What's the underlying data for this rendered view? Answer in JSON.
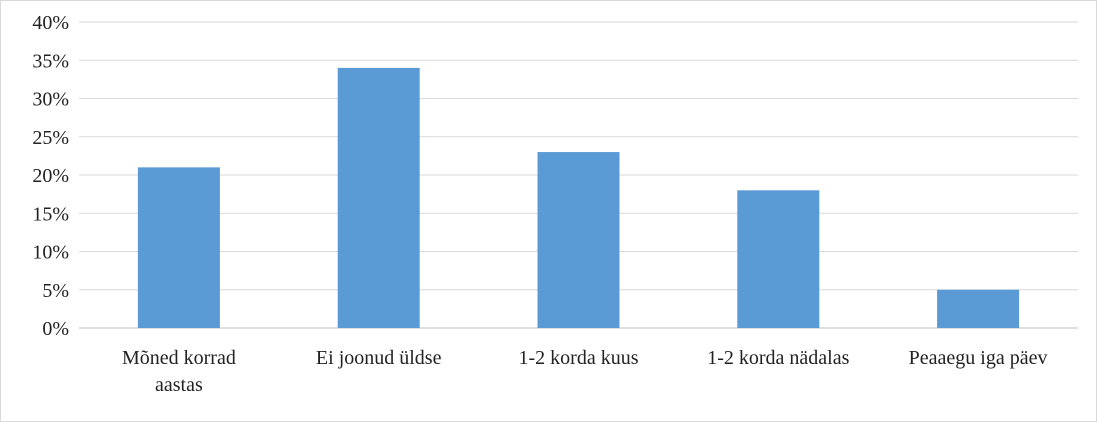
{
  "chart_data": {
    "type": "bar",
    "title": "",
    "xlabel": "",
    "ylabel": "",
    "categories": [
      [
        "Mõned korrad",
        "aastas"
      ],
      [
        "Ei joonud üldse"
      ],
      [
        "1-2 korda kuus"
      ],
      [
        "1-2 korda nädalas"
      ],
      [
        "Peaaegu iga päev"
      ]
    ],
    "values": [
      21,
      34,
      23,
      18,
      5
    ],
    "ylim": [
      0,
      40
    ],
    "yticks": [
      0,
      5,
      10,
      15,
      20,
      25,
      30,
      35,
      40
    ],
    "ytick_format": "{v}%",
    "grid": true,
    "legend": "none",
    "colors": {
      "bar": "#5b9bd5",
      "grid": "#d9d9d9",
      "axis": "#bfbfbf"
    }
  }
}
